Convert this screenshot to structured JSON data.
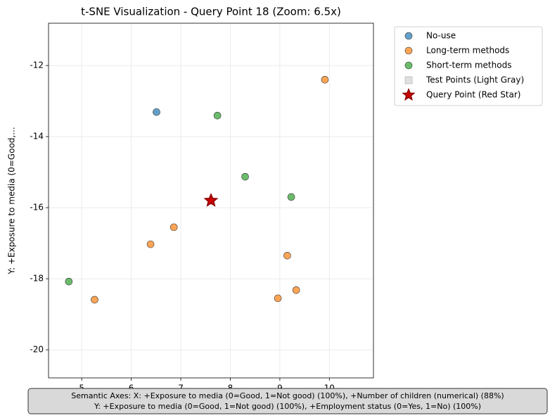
{
  "chart_data": {
    "type": "scatter",
    "title": "t-SNE Visualization - Query Point 18 (Zoom: 6.5x)",
    "ylabel": "Y: +Exposure to media (0=Good,...",
    "xlim": [
      4.33,
      10.89
    ],
    "ylim": [
      -20.79,
      -10.81
    ],
    "xticks": [
      5,
      6,
      7,
      8,
      9,
      10
    ],
    "yticks": [
      -12,
      -14,
      -16,
      -18,
      -20
    ],
    "grid": true,
    "legend": "outside-upper-right",
    "series": [
      {
        "name": "No-use",
        "color": "#1f77b4",
        "marker": "circle",
        "x": [
          6.51
        ],
        "y": [
          -13.31
        ]
      },
      {
        "name": "Long-term methods",
        "color": "#ff7f0e",
        "marker": "circle",
        "x": [
          9.91,
          6.86,
          6.39,
          5.26,
          9.15,
          8.96,
          9.33
        ],
        "y": [
          -12.4,
          -16.55,
          -17.03,
          -18.59,
          -17.35,
          -18.55,
          -18.32
        ]
      },
      {
        "name": "Short-term methods",
        "color": "#2ca02c",
        "marker": "circle",
        "x": [
          7.74,
          8.3,
          9.23,
          4.74
        ],
        "y": [
          -13.41,
          -15.13,
          -15.7,
          -18.08
        ]
      },
      {
        "name": "Test Points (Light Gray)",
        "color": "#d3d3d3",
        "marker": "square",
        "x": [],
        "y": []
      },
      {
        "name": "Query Point (Red Star)",
        "color": "#cc0000",
        "marker": "star",
        "x": [
          7.61
        ],
        "y": [
          -15.8
        ]
      }
    ],
    "annotation": [
      "Semantic Axes: X: +Exposure to media (0=Good, 1=Not good) (100%), +Number of children (numerical) (88%)",
      "Y: +Exposure to media (0=Good, 1=Not good) (100%), +Employment status (0=Yes, 1=No) (100%)"
    ]
  }
}
